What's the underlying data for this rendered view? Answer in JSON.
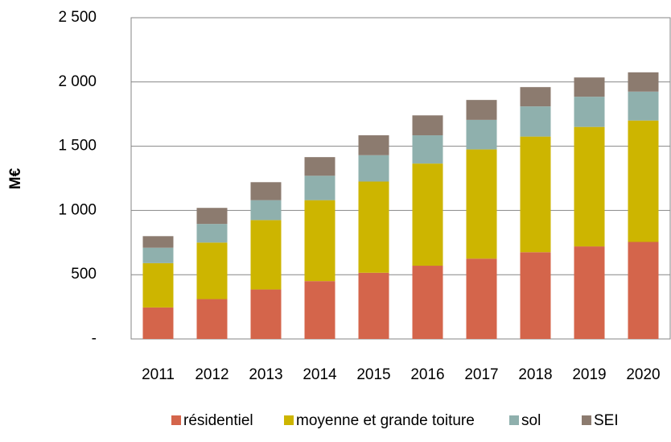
{
  "chart_data": {
    "type": "stacked_bar",
    "ylabel": "M€",
    "categories": [
      "2011",
      "2012",
      "2013",
      "2014",
      "2015",
      "2016",
      "2017",
      "2018",
      "2019",
      "2020"
    ],
    "series": [
      {
        "name": "résidentiel",
        "color": "#d4654b",
        "values": [
          245,
          310,
          385,
          450,
          515,
          570,
          625,
          675,
          720,
          755
        ]
      },
      {
        "name": "moyenne et grande toiture",
        "color": "#cdb500",
        "values": [
          345,
          440,
          540,
          630,
          710,
          795,
          850,
          900,
          930,
          945
        ]
      },
      {
        "name": "sol",
        "color": "#8fb0ad",
        "values": [
          120,
          145,
          155,
          190,
          205,
          220,
          230,
          235,
          235,
          225
        ]
      },
      {
        "name": "SEI",
        "color": "#8c7b6f",
        "values": [
          90,
          125,
          140,
          145,
          155,
          155,
          155,
          150,
          150,
          150
        ]
      }
    ],
    "ylim": [
      0,
      2500
    ],
    "yticks": [
      {
        "value": 0,
        "label": "-"
      },
      500,
      {
        "value": 1000,
        "label": "1 000"
      },
      {
        "value": 1500,
        "label": "1 500"
      },
      {
        "value": 2000,
        "label": "2 000"
      },
      {
        "value": 2500,
        "label": "2 500"
      }
    ],
    "grid": true,
    "legend": "bottom"
  }
}
